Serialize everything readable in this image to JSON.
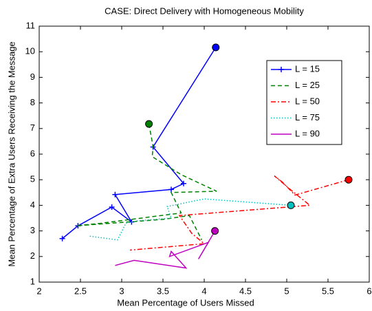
{
  "chart_data": {
    "type": "line",
    "title": "CASE: Direct Delivery with Homogeneous Mobility",
    "x_label": "Mean Percentage of Users Missed",
    "y_label": "Mean Percentage of Extra Users Receiving the Message",
    "xlim": [
      2,
      6
    ],
    "xticks": [
      2,
      2.5,
      3,
      3.5,
      4,
      4.5,
      5,
      5.5,
      6
    ],
    "ylim": [
      1,
      11
    ],
    "yticks": [
      1,
      2,
      3,
      4,
      5,
      6,
      7,
      8,
      9,
      10,
      11
    ],
    "grid": false,
    "legend_loc": "upper right",
    "series": [
      {
        "name": "L = 15",
        "color": "#0000ff",
        "line_style": "solid",
        "marker": "+",
        "x": [
          4.14,
          3.38,
          3.75,
          3.6,
          2.92,
          3.12,
          2.88,
          2.47,
          2.28
        ],
        "values": [
          10.17,
          6.28,
          4.85,
          4.62,
          4.42,
          3.35,
          3.93,
          3.2,
          2.7
        ]
      },
      {
        "name": "L = 25",
        "color": "#008000",
        "line_style": "dashed",
        "marker": "none",
        "x": [
          3.33,
          3.38,
          3.37,
          3.72,
          4.15,
          3.6,
          3.72,
          2.75,
          2.45,
          3.5,
          3.82,
          3.97
        ],
        "values": [
          7.18,
          6.3,
          5.9,
          5.2,
          4.55,
          4.5,
          3.7,
          3.3,
          3.2,
          3.45,
          3.6,
          2.65
        ]
      },
      {
        "name": "L = 50",
        "color": "#ff0000",
        "line_style": "dashdot",
        "marker": "none",
        "x": [
          5.75,
          5.1,
          4.95,
          4.85,
          5.05,
          5.28,
          3.7,
          3.85,
          4.0,
          3.1
        ],
        "values": [
          5.0,
          4.4,
          4.9,
          5.15,
          4.6,
          4.0,
          3.6,
          2.9,
          2.5,
          2.25
        ]
      },
      {
        "name": "L = 75",
        "color": "#00bfbf",
        "line_style": "dotted",
        "marker": "none",
        "x": [
          5.05,
          4.0,
          3.55,
          3.6,
          3.2,
          3.05,
          2.95,
          2.6
        ],
        "values": [
          4.0,
          4.25,
          3.95,
          3.5,
          3.4,
          3.3,
          2.65,
          2.8
        ]
      },
      {
        "name": "L = 90",
        "color": "#bf00bf",
        "line_style": "solid",
        "marker": "none",
        "x": [
          4.13,
          3.93,
          4.05,
          3.58,
          3.6,
          3.78,
          3.15,
          2.92
        ],
        "values": [
          3.0,
          1.9,
          2.55,
          2.0,
          2.2,
          1.55,
          1.85,
          1.65
        ]
      }
    ]
  }
}
